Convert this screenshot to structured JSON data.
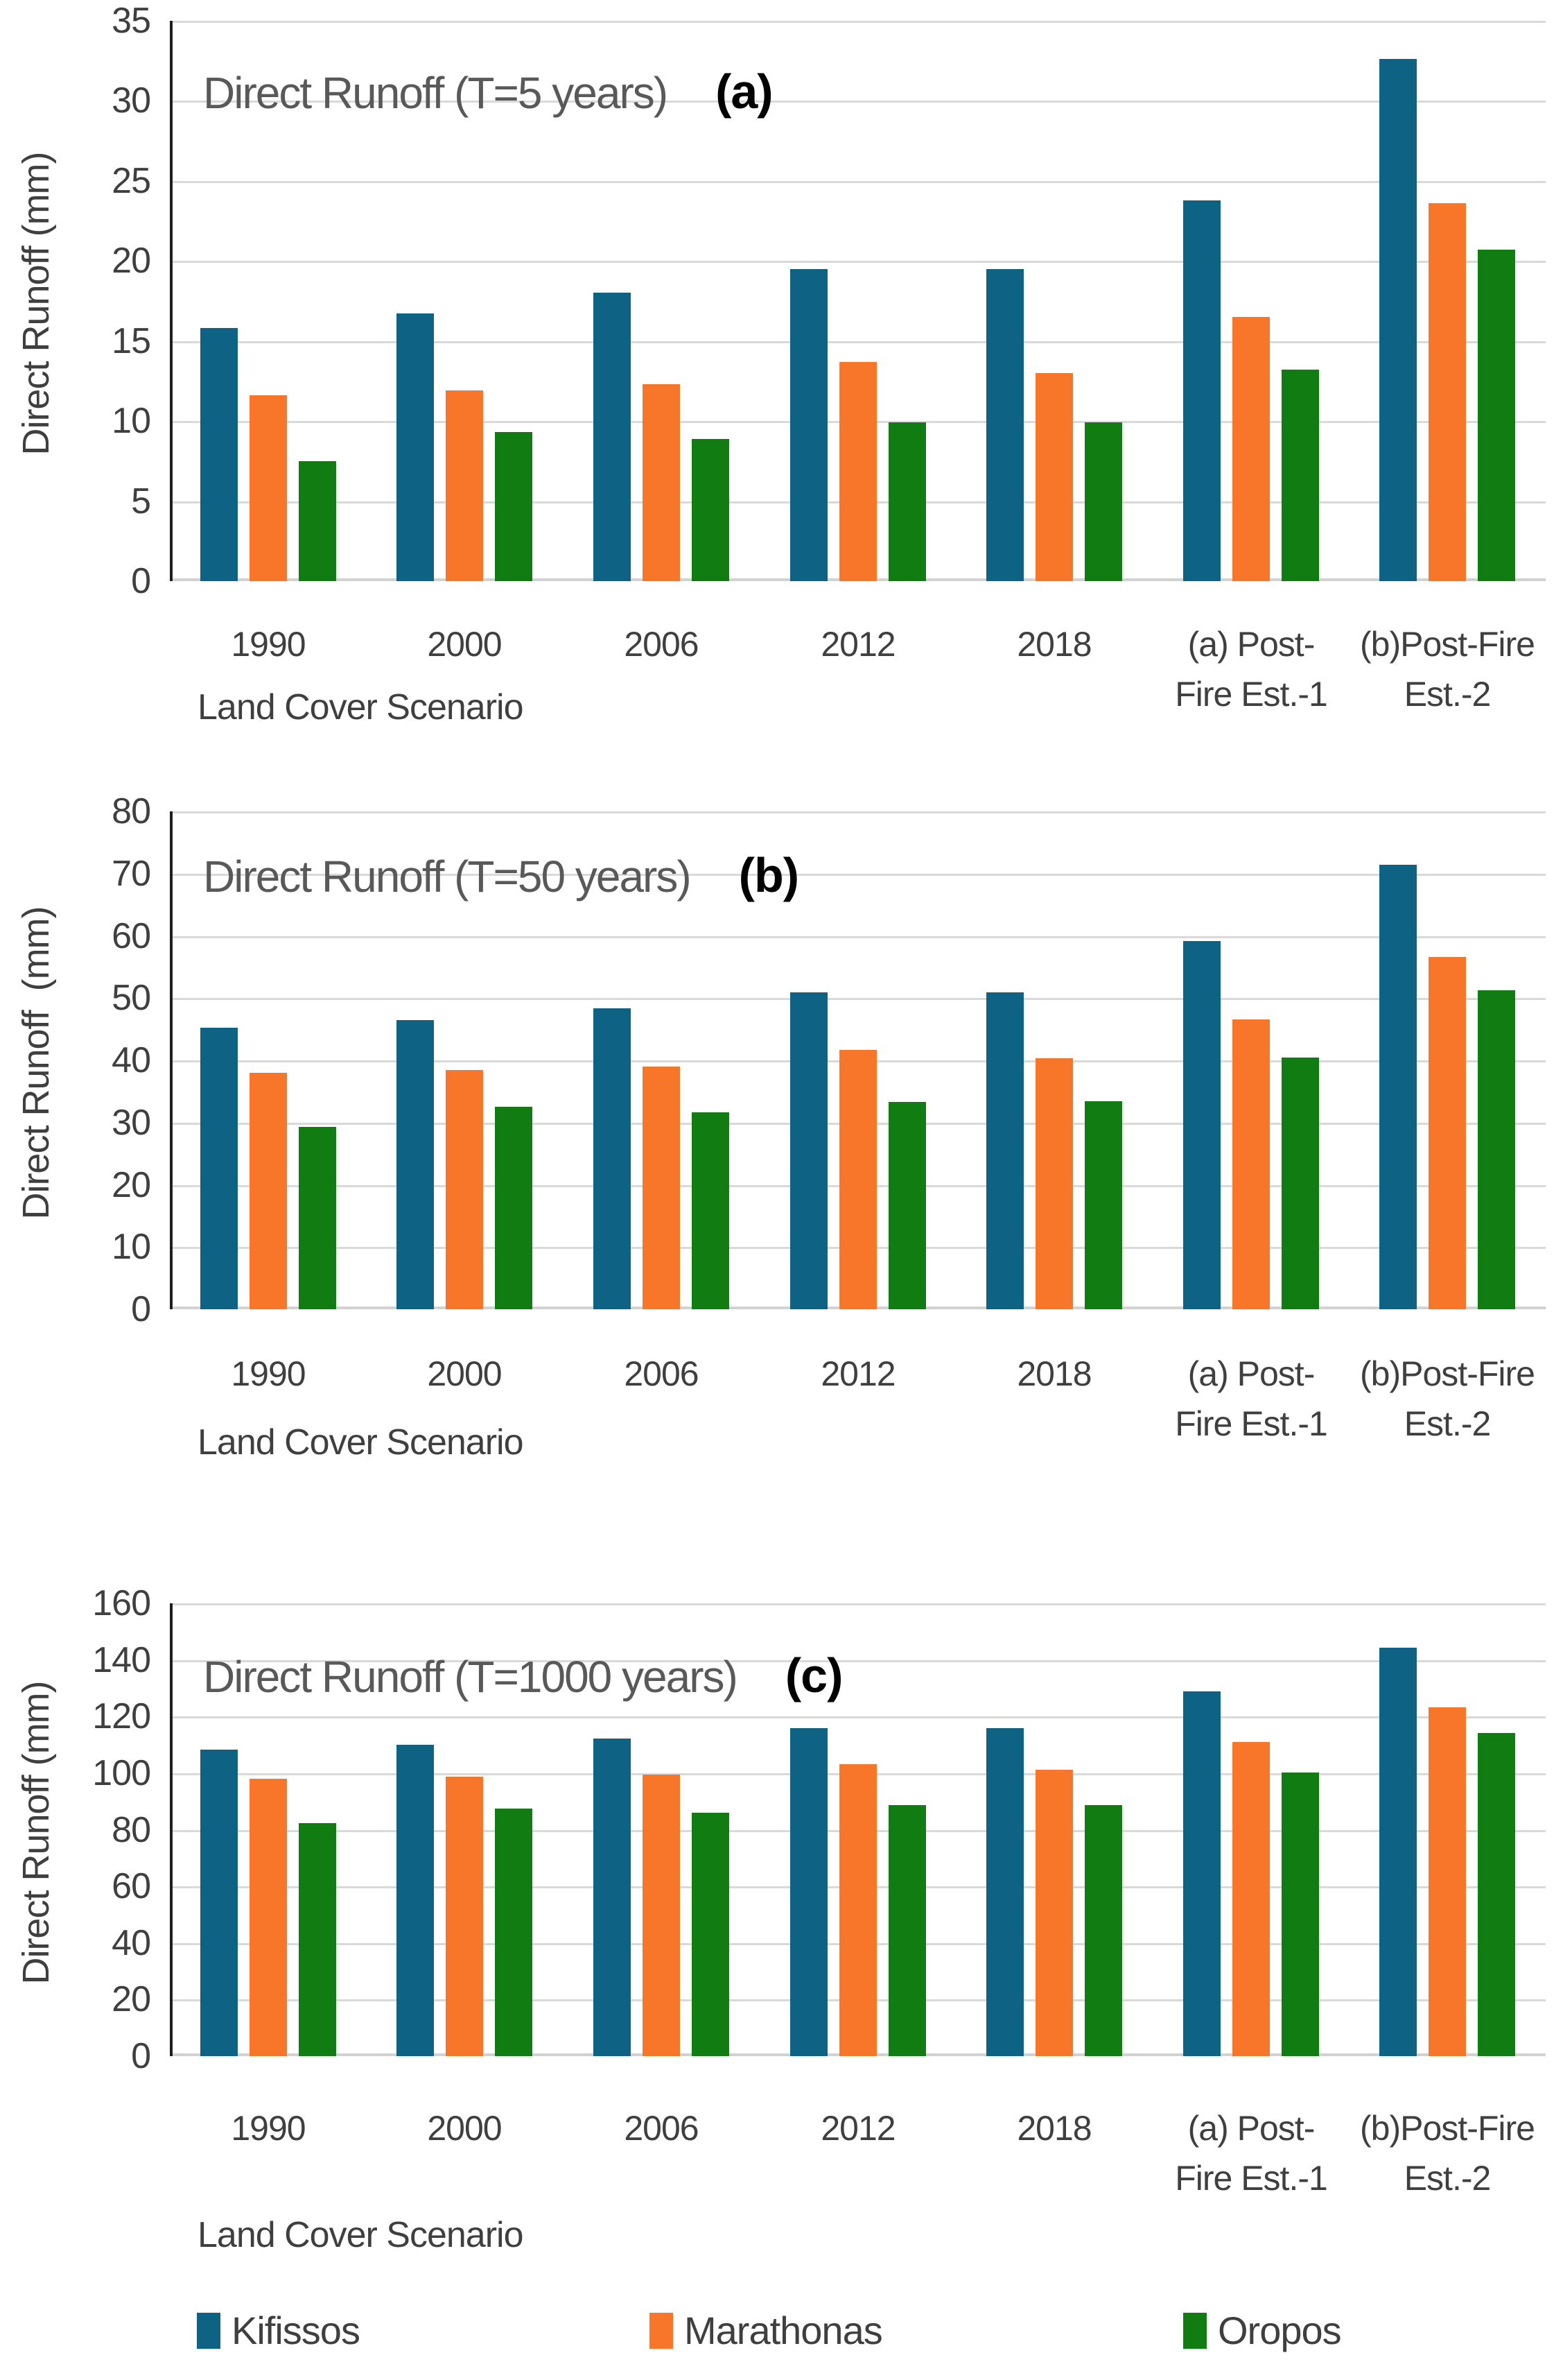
{
  "page": {
    "background": "#ffffff"
  },
  "x_axis_title": "Land Cover Scenario",
  "display_categories": [
    [
      "1990"
    ],
    [
      "2000"
    ],
    [
      "2006"
    ],
    [
      "2012"
    ],
    [
      "2018"
    ],
    [
      "(a) Post-",
      "Fire Est.-1"
    ],
    [
      "(b)Post-Fire",
      "Est.-2"
    ]
  ],
  "legend": {
    "position": "bottom",
    "items": [
      {
        "label": "Kifissos",
        "color": "#0E6284"
      },
      {
        "label": "Marathonas",
        "color": "#F87629"
      },
      {
        "label": "Oropos",
        "color": "#107C12"
      }
    ]
  },
  "chart_data": [
    {
      "type": "bar",
      "title": "Direct Runoff (T=5 years)",
      "panel_label": "(a)",
      "ylabel": "Direct Runoff (mm)",
      "xlabel": "Land Cover Scenario",
      "ylim": [
        0,
        35
      ],
      "ytick_step": 5,
      "yticks": [
        35,
        30,
        25,
        20,
        15,
        10,
        5,
        0
      ],
      "grid": true,
      "legend_position": "none",
      "categories": [
        "1990",
        "2000",
        "2006",
        "2012",
        "2018",
        "(a) Post-Fire Est.-1",
        "(b)Post-Fire Est.-2"
      ],
      "series": [
        {
          "name": "Kifissos",
          "values": [
            15.8,
            16.7,
            18.0,
            19.5,
            19.5,
            23.8,
            32.6
          ]
        },
        {
          "name": "Marathonas",
          "values": [
            11.6,
            11.9,
            12.3,
            13.7,
            13.0,
            16.5,
            23.6
          ]
        },
        {
          "name": "Oropos",
          "values": [
            7.5,
            9.3,
            8.9,
            9.9,
            9.9,
            13.2,
            20.7
          ]
        }
      ]
    },
    {
      "type": "bar",
      "title": "Direct Runoff (T=50 years)",
      "panel_label": "(b)",
      "ylabel": "Direct Runoff  (mm)",
      "xlabel": "Land Cover Scenario",
      "ylim": [
        0,
        80
      ],
      "ytick_step": 10,
      "yticks": [
        80,
        70,
        60,
        50,
        40,
        30,
        20,
        10,
        0
      ],
      "grid": true,
      "legend_position": "none",
      "categories": [
        "1990",
        "2000",
        "2006",
        "2012",
        "2018",
        "(a) Post-Fire Est.-1",
        "(b)Post-Fire Est.-2"
      ],
      "series": [
        {
          "name": "Kifissos",
          "values": [
            45.2,
            46.5,
            48.4,
            50.9,
            50.9,
            59.2,
            71.4
          ]
        },
        {
          "name": "Marathonas",
          "values": [
            38.0,
            38.4,
            39.0,
            41.7,
            40.3,
            46.6,
            56.6
          ]
        },
        {
          "name": "Oropos",
          "values": [
            29.3,
            32.5,
            31.6,
            33.3,
            33.4,
            40.4,
            51.2
          ]
        }
      ]
    },
    {
      "type": "bar",
      "title": "Direct Runoff (T=1000 years)",
      "panel_label": "(c)",
      "ylabel": "Direct Runoff (mm)",
      "xlabel": "Land Cover Scenario",
      "ylim": [
        0,
        160
      ],
      "ytick_step": 20,
      "yticks": [
        160,
        140,
        120,
        100,
        80,
        60,
        40,
        20,
        0
      ],
      "grid": true,
      "legend_position": "none",
      "categories": [
        "1990",
        "2000",
        "2006",
        "2012",
        "2018",
        "(a) Post-Fire Est.-1",
        "(b)Post-Fire Est.-2"
      ],
      "series": [
        {
          "name": "Kifissos",
          "values": [
            108.2,
            110.0,
            112.2,
            115.8,
            115.8,
            128.9,
            144.4
          ]
        },
        {
          "name": "Marathonas",
          "values": [
            98.0,
            98.8,
            99.4,
            103.2,
            101.3,
            111.0,
            123.3
          ]
        },
        {
          "name": "Oropos",
          "values": [
            82.4,
            87.5,
            85.9,
            88.6,
            88.6,
            100.1,
            114.3
          ]
        }
      ]
    }
  ]
}
